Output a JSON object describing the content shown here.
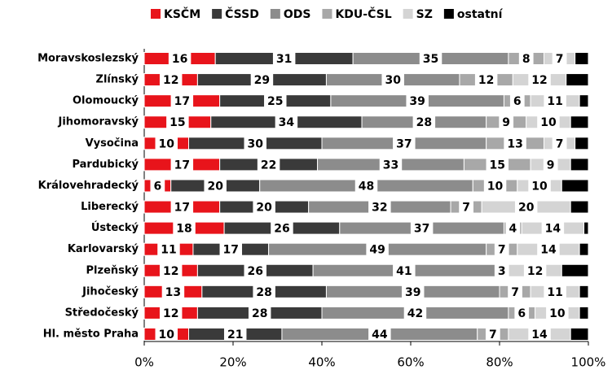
{
  "chart_data": {
    "type": "stacked_bar_horizontal",
    "categories": [
      "Moravskoslezský",
      "Zlínský",
      "Olomoucký",
      "Jihomoravský",
      "Vysočina",
      "Pardubický",
      "Královehradecký",
      "Liberecký",
      "Ústecký",
      "Karlovarský",
      "Plzeňský",
      "Jihočeský",
      "Středočeský",
      "Hl. město Praha"
    ],
    "series": [
      {
        "name": "KSČM",
        "color": "#e8141b",
        "values": [
          16,
          12,
          17,
          15,
          10,
          17,
          6,
          17,
          18,
          11,
          12,
          13,
          12,
          10
        ],
        "labeled": true
      },
      {
        "name": "ČSSD",
        "color": "#3a3a3a",
        "values": [
          31,
          29,
          25,
          34,
          30,
          22,
          20,
          20,
          26,
          17,
          26,
          28,
          28,
          21
        ],
        "labeled": true
      },
      {
        "name": "ODS",
        "color": "#8c8c8c",
        "values": [
          35,
          30,
          39,
          28,
          37,
          33,
          48,
          32,
          37,
          49,
          41,
          39,
          42,
          44
        ],
        "labeled": true
      },
      {
        "name": "KDU-ČSL",
        "color": "#a8a8a8",
        "values": [
          8,
          12,
          6,
          9,
          13,
          15,
          10,
          7,
          4,
          7,
          3,
          7,
          6,
          7
        ],
        "labeled": true
      },
      {
        "name": "SZ",
        "color": "#d4d4d4",
        "values": [
          7,
          12,
          11,
          10,
          7,
          9,
          10,
          20,
          14,
          14,
          12,
          11,
          10,
          14
        ],
        "labeled": true
      },
      {
        "name": "ostatní",
        "color": "#000000",
        "values": [
          3,
          5,
          2,
          4,
          3,
          4,
          6,
          4,
          1,
          2,
          6,
          2,
          2,
          4
        ],
        "labeled": false
      }
    ],
    "xlim": [
      0,
      100
    ],
    "xticks": [
      {
        "value": 0,
        "label": "0%"
      },
      {
        "value": 20,
        "label": "20%"
      },
      {
        "value": 40,
        "label": "40%"
      },
      {
        "value": 60,
        "label": "60%"
      },
      {
        "value": 80,
        "label": "80%"
      },
      {
        "value": 100,
        "label": "100%"
      }
    ],
    "legend": "top"
  }
}
